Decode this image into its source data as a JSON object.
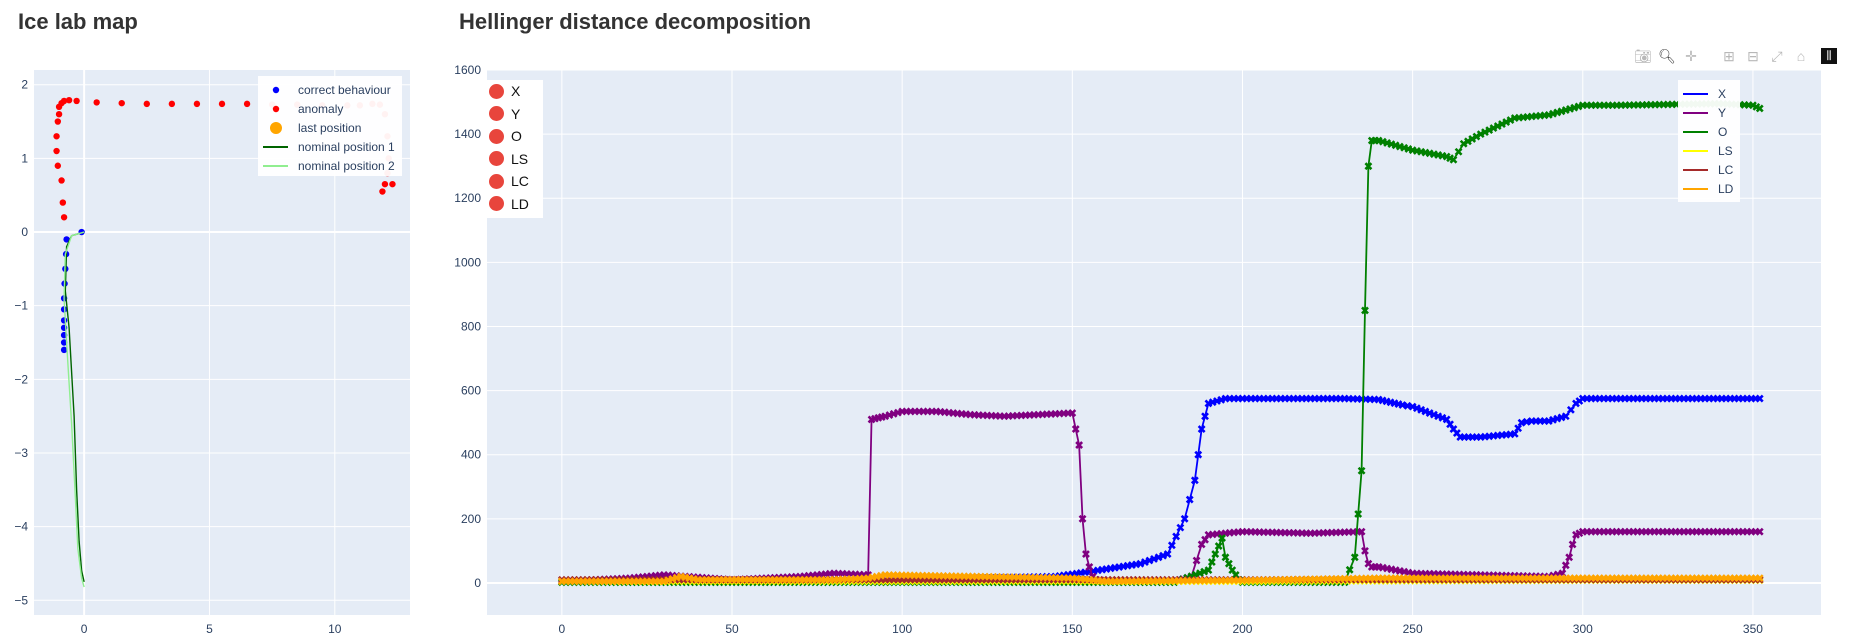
{
  "titles": {
    "left": "Ice lab map",
    "right": "Hellinger distance decomposition"
  },
  "modebar": {
    "icons": [
      "camera-icon",
      "zoom-icon",
      "pan-icon",
      "zoom-in-icon",
      "zoom-out-icon",
      "autoscale-icon",
      "home-icon",
      "plotly-logo-icon"
    ]
  },
  "toggles": [
    "X",
    "Y",
    "O",
    "LS",
    "LC",
    "LD"
  ],
  "chart_data": [
    {
      "type": "scatter",
      "title": "Ice lab map",
      "xlim": [
        -2,
        13
      ],
      "ylim": [
        -5.2,
        2.2
      ],
      "xticks": [
        0,
        5,
        10
      ],
      "yticks": [
        2,
        1,
        0,
        -1,
        -2,
        -3,
        -4,
        -5
      ],
      "xtick_labels": [
        "0",
        "5",
        "10"
      ],
      "ytick_labels": [
        "2",
        "1",
        "0",
        "−1",
        "−2",
        "−3",
        "−4",
        "−5"
      ],
      "legend_position": "top-right",
      "legend": [
        "correct behaviour",
        "anomaly",
        "last position",
        "nominal position 1",
        "nominal position 2"
      ],
      "series": [
        {
          "name": "correct behaviour",
          "color": "#0000ff",
          "mode": "markers",
          "x": [
            -0.7,
            -0.72,
            -0.75,
            -0.78,
            -0.8,
            -0.8,
            -0.8,
            -0.8,
            -0.8,
            -0.8,
            -0.8,
            -0.1
          ],
          "y": [
            -0.1,
            -0.3,
            -0.5,
            -0.7,
            -0.9,
            -1.05,
            -1.2,
            -1.3,
            -1.4,
            -1.5,
            -1.6,
            0.0
          ]
        },
        {
          "name": "anomaly",
          "color": "#ff0000",
          "mode": "markers",
          "x": [
            -1.0,
            -1.05,
            -1.1,
            -1.1,
            -1.05,
            -1.0,
            -0.9,
            -0.8,
            -0.6,
            -0.3,
            0.5,
            1.5,
            2.5,
            3.5,
            4.5,
            5.5,
            6.5,
            7.5,
            8.5,
            9.5,
            10.5,
            11.0,
            11.5,
            11.8,
            12.0,
            12.1,
            12.15,
            12.1,
            12.0,
            11.9,
            12.3,
            -0.9,
            -0.85,
            -0.8
          ],
          "y": [
            1.6,
            1.5,
            1.3,
            1.1,
            0.9,
            1.7,
            1.75,
            1.78,
            1.79,
            1.78,
            1.76,
            1.75,
            1.74,
            1.74,
            1.74,
            1.74,
            1.74,
            1.73,
            1.73,
            1.72,
            1.72,
            1.72,
            1.74,
            1.73,
            1.6,
            1.3,
            1.0,
            0.8,
            0.65,
            0.55,
            0.65,
            0.7,
            0.4,
            0.2
          ]
        },
        {
          "name": "last position",
          "color": "#ffa500",
          "mode": "markers",
          "x": [],
          "y": []
        },
        {
          "name": "nominal position 1",
          "color": "#006400",
          "mode": "lines",
          "x": [
            0,
            -0.5,
            -0.7,
            -0.75,
            -0.6,
            -0.4,
            -0.3,
            -0.2,
            -0.1,
            0
          ],
          "y": [
            0,
            -0.05,
            -0.2,
            -0.8,
            -1.3,
            -2.5,
            -3.5,
            -4.2,
            -4.6,
            -4.75
          ]
        },
        {
          "name": "nominal position 2",
          "color": "#90ee90",
          "mode": "lines",
          "x": [
            0,
            -0.5,
            -0.75,
            -0.8,
            -0.7,
            -0.5,
            -0.35,
            -0.25,
            -0.1,
            0
          ],
          "y": [
            0,
            -0.05,
            -0.3,
            -0.9,
            -1.5,
            -2.6,
            -3.6,
            -4.3,
            -4.7,
            -4.82
          ]
        }
      ]
    },
    {
      "type": "line",
      "title": "Hellinger distance decomposition",
      "xlim": [
        -22,
        370
      ],
      "ylim": [
        -100,
        1600
      ],
      "xticks": [
        0,
        50,
        100,
        150,
        200,
        250,
        300,
        350
      ],
      "yticks": [
        0,
        200,
        400,
        600,
        800,
        1000,
        1200,
        1400,
        1600
      ],
      "xtick_labels": [
        "0",
        "50",
        "100",
        "150",
        "200",
        "250",
        "300",
        "350"
      ],
      "ytick_labels": [
        "0",
        "200",
        "400",
        "600",
        "800",
        "1000",
        "1200",
        "1400",
        "1600"
      ],
      "legend_position": "top-right",
      "marker": "x",
      "series": [
        {
          "name": "X",
          "color": "#0000ff",
          "x": [
            0,
            100,
            145,
            155,
            170,
            178,
            183,
            186,
            188,
            190,
            195,
            230,
            240,
            247,
            250,
            260,
            262,
            264,
            270,
            280,
            282,
            285,
            290,
            295,
            298,
            300,
            352
          ],
          "y": [
            5,
            10,
            20,
            35,
            60,
            90,
            200,
            320,
            480,
            560,
            575,
            575,
            572,
            555,
            550,
            510,
            480,
            455,
            455,
            465,
            500,
            505,
            505,
            520,
            560,
            575,
            575
          ]
        },
        {
          "name": "Y",
          "color": "#800080",
          "x": [
            0,
            10,
            20,
            30,
            50,
            70,
            80,
            90,
            91,
            93,
            95,
            100,
            110,
            120,
            130,
            150,
            152,
            153,
            154,
            155,
            156,
            157,
            160,
            180,
            185,
            188,
            190,
            200,
            220,
            235,
            236,
            237,
            238,
            240,
            250,
            290,
            294,
            296,
            297,
            298,
            300,
            352
          ],
          "y": [
            5,
            10,
            15,
            25,
            10,
            20,
            30,
            25,
            510,
            515,
            520,
            535,
            535,
            525,
            520,
            530,
            430,
            200,
            90,
            50,
            20,
            10,
            5,
            5,
            20,
            120,
            150,
            160,
            155,
            160,
            100,
            60,
            50,
            50,
            30,
            20,
            30,
            80,
            120,
            150,
            160,
            160
          ]
        },
        {
          "name": "O",
          "color": "#008000",
          "x": [
            0,
            50,
            100,
            150,
            180,
            190,
            192,
            194,
            195,
            197,
            199,
            200,
            205,
            230,
            233,
            235,
            236,
            237,
            238,
            240,
            250,
            260,
            262,
            265,
            270,
            280,
            290,
            300,
            310,
            340,
            350,
            352
          ],
          "y": [
            2,
            2,
            2,
            2,
            2,
            40,
            90,
            140,
            80,
            40,
            10,
            2,
            2,
            2,
            80,
            350,
            850,
            1300,
            1380,
            1380,
            1350,
            1330,
            1320,
            1370,
            1400,
            1450,
            1460,
            1490,
            1490,
            1495,
            1490,
            1480
          ]
        },
        {
          "name": "LS",
          "color": "#ffff00",
          "x": [
            0,
            100,
            200,
            300,
            352
          ],
          "y": [
            5,
            5,
            5,
            8,
            8
          ]
        },
        {
          "name": "LC",
          "color": "#a52a2a",
          "x": [
            0,
            100,
            200,
            300,
            352
          ],
          "y": [
            10,
            10,
            10,
            10,
            10
          ]
        },
        {
          "name": "LD",
          "color": "#ffa500",
          "x": [
            0,
            30,
            35,
            40,
            80,
            90,
            95,
            150,
            160,
            200,
            240,
            300,
            352
          ],
          "y": [
            5,
            5,
            20,
            10,
            10,
            15,
            25,
            15,
            5,
            8,
            15,
            15,
            15
          ]
        }
      ]
    }
  ]
}
